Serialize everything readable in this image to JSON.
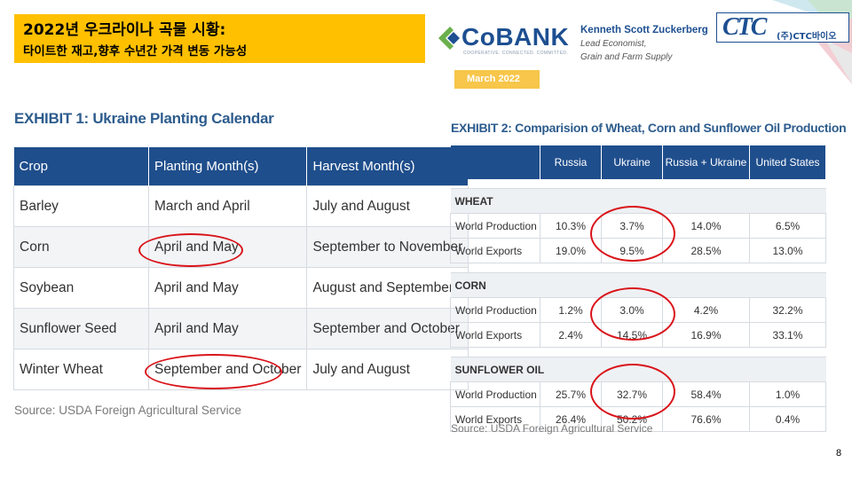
{
  "title": {
    "main": "2022년 우크라이나 곡물 시황:",
    "sub": "타이트한 재고,향후 수년간 가격 변동 가능성"
  },
  "cobank": {
    "word": "CoBANK",
    "tagline": "COOPERATIVE. CONNECTED. COMMITTED."
  },
  "author": {
    "name": "Kenneth Scott Zuckerberg",
    "role1": "Lead Economist,",
    "role2": "Grain and Farm Supply"
  },
  "date": "March 2022",
  "ctc": {
    "mark": "CTC",
    "name": "(주)CTC바이오"
  },
  "exhibit1": {
    "title": "EXHIBIT 1: Ukraine Planting Calendar",
    "headers": [
      "Crop",
      "Planting Month(s)",
      "Harvest Month(s)"
    ],
    "rows": [
      [
        "Barley",
        "March and April",
        "July and August"
      ],
      [
        "Corn",
        "April and May",
        "September to November"
      ],
      [
        "Soybean",
        "April and May",
        "August and September"
      ],
      [
        "Sunflower Seed",
        "April and May",
        "September and October"
      ],
      [
        "Winter Wheat",
        "September and October",
        "July and August"
      ]
    ],
    "source": "Source: USDA Foreign Agricultural Service"
  },
  "exhibit2": {
    "title": "EXHIBIT 2: Comparision of Wheat, Corn and Sunflower Oil Production",
    "headers": [
      "",
      "Russia",
      "Ukraine",
      "Russia + Ukraine",
      "United States"
    ],
    "sections": [
      {
        "name": "WHEAT",
        "rows": [
          [
            "World Production",
            "10.3%",
            "3.7%",
            "14.0%",
            "6.5%"
          ],
          [
            "World Exports",
            "19.0%",
            "9.5%",
            "28.5%",
            "13.0%"
          ]
        ]
      },
      {
        "name": "CORN",
        "rows": [
          [
            "World Production",
            "1.2%",
            "3.0%",
            "4.2%",
            "32.2%"
          ],
          [
            "World Exports",
            "2.4%",
            "14.5%",
            "16.9%",
            "33.1%"
          ]
        ]
      },
      {
        "name": "SUNFLOWER OIL",
        "rows": [
          [
            "World Production",
            "25.7%",
            "32.7%",
            "58.4%",
            "1.0%"
          ],
          [
            "World Exports",
            "26.4%",
            "50.2%",
            "76.6%",
            "0.4%"
          ]
        ]
      }
    ],
    "source": "Source: USDA Foreign Agricultural Service"
  },
  "page_number": "8",
  "colors": {
    "header_blue": "#1f4e8c",
    "title_yellow": "#ffc000",
    "highlight_red": "#d9141a"
  }
}
